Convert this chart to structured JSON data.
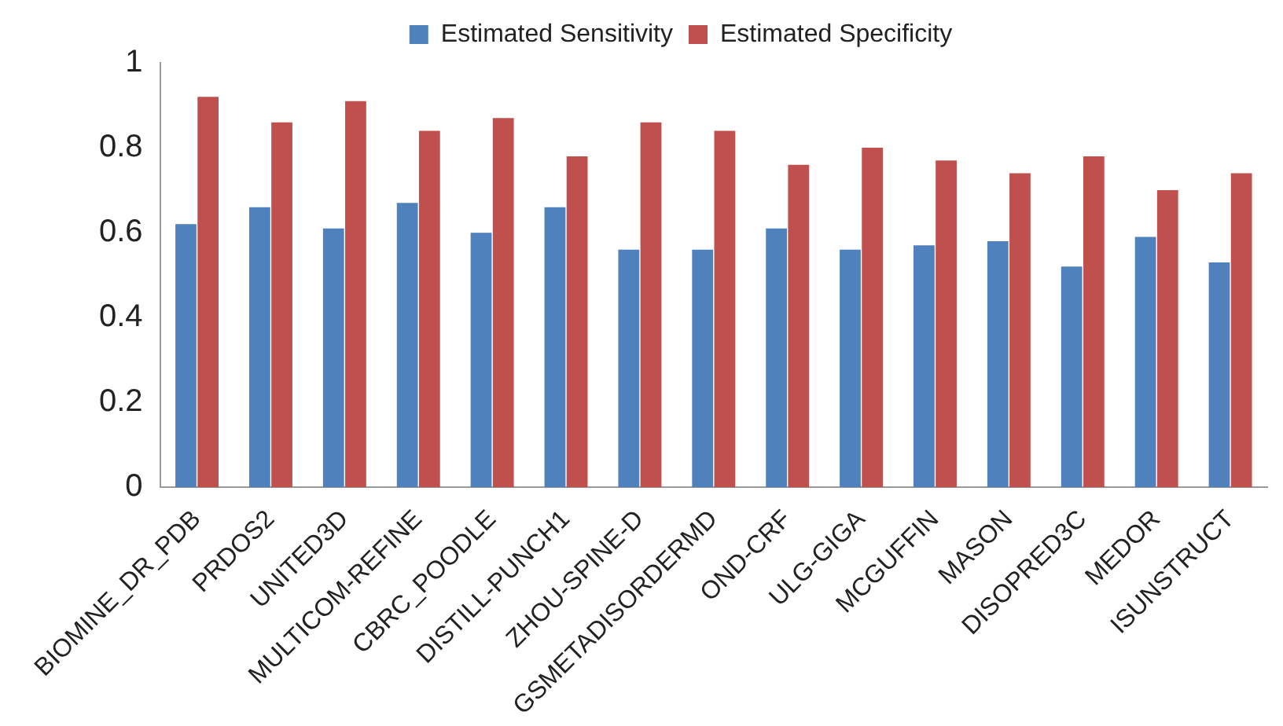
{
  "chart_data": {
    "type": "bar",
    "categories": [
      "BIOMINE_DR_PDB",
      "PRDOS2",
      "UNITED3D",
      "MULTICOM-REFINE",
      "CBRC_POODLE",
      "DISTILL-PUNCH1",
      "ZHOU-SPINE-D",
      "GSMETADISORDERMD",
      "OND-CRF",
      "ULG-GIGA",
      "MCGUFFIN",
      "MASON",
      "DISOPRED3C",
      "MEDOR",
      "ISUNSTRUCT"
    ],
    "series": [
      {
        "name": "Estimated Sensitivity",
        "color": "#4f81bd",
        "values": [
          0.62,
          0.66,
          0.61,
          0.67,
          0.6,
          0.66,
          0.56,
          0.56,
          0.61,
          0.56,
          0.57,
          0.58,
          0.52,
          0.59,
          0.53
        ]
      },
      {
        "name": "Estimated Specificity",
        "color": "#c0504d",
        "values": [
          0.92,
          0.86,
          0.91,
          0.84,
          0.87,
          0.78,
          0.86,
          0.84,
          0.76,
          0.8,
          0.77,
          0.74,
          0.78,
          0.7,
          0.74
        ]
      }
    ],
    "ylim": [
      0,
      1
    ],
    "yticks": [
      0,
      0.2,
      0.4,
      0.6,
      0.8,
      1
    ],
    "grid": false,
    "legend": "top"
  }
}
